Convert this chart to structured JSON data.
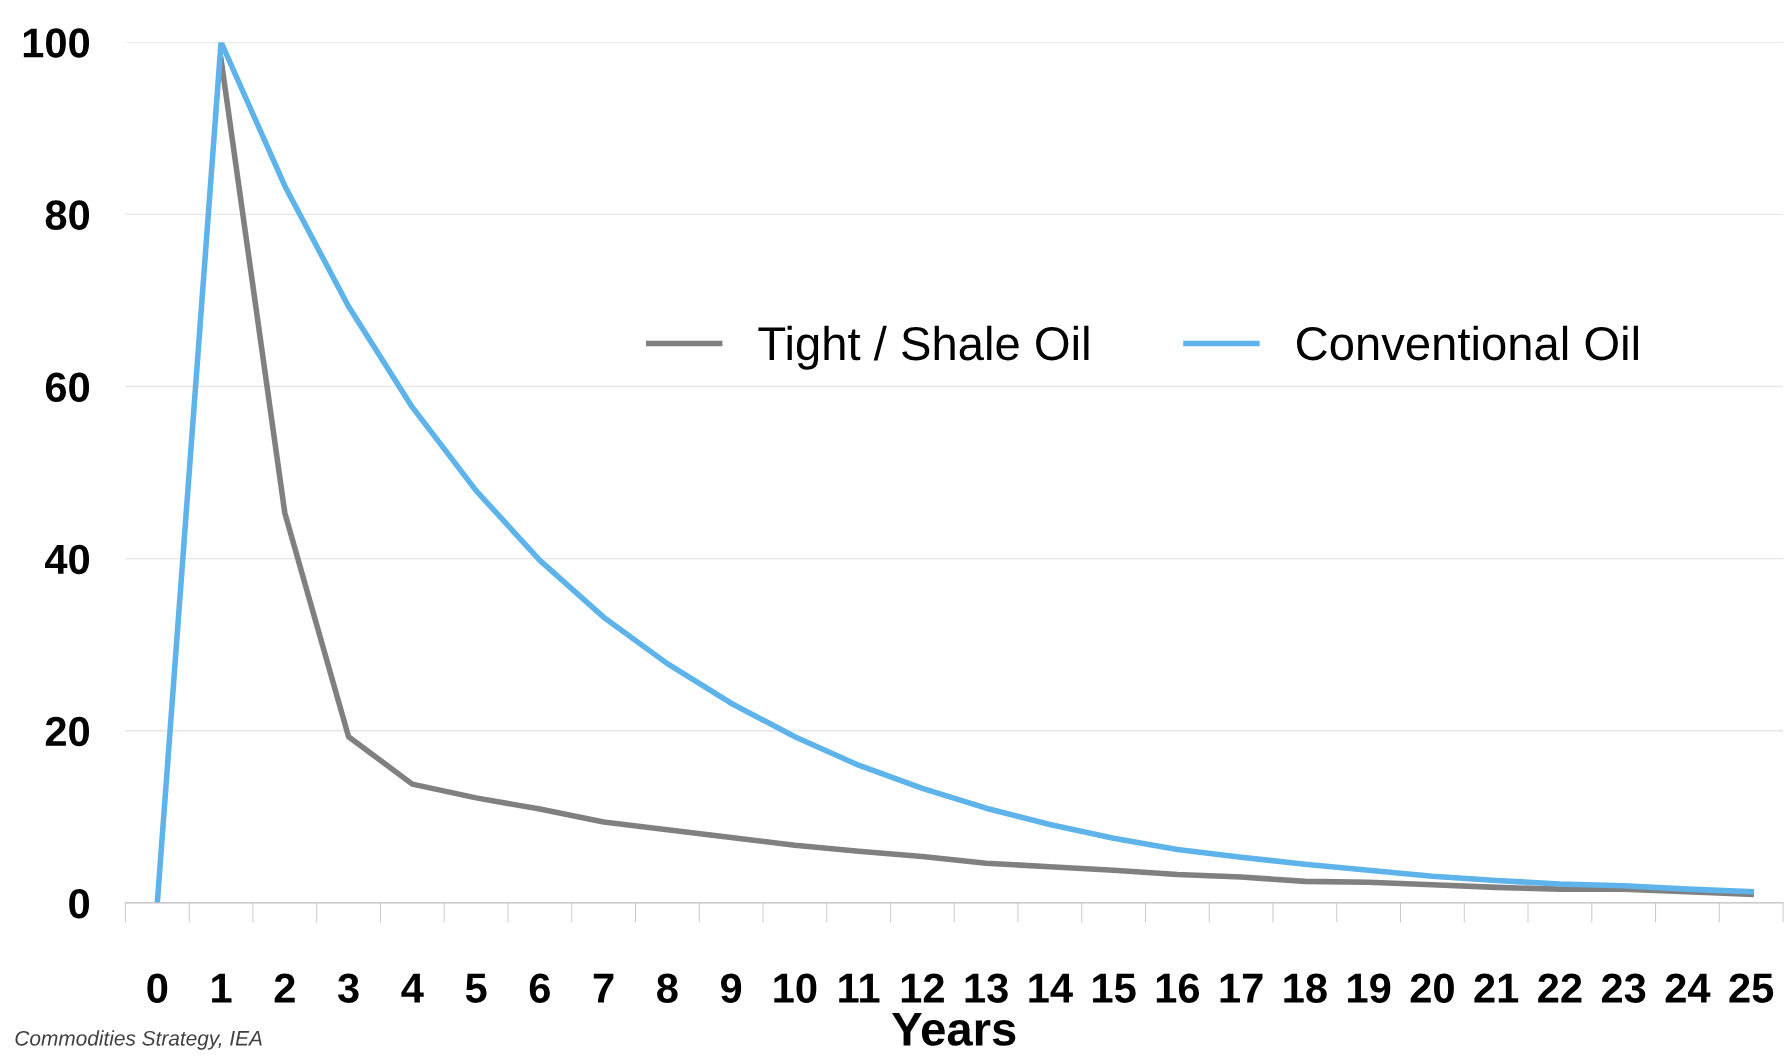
{
  "chart_data": {
    "type": "line",
    "xlabel": "Years",
    "categories": [
      "0",
      "1",
      "2",
      "3",
      "4",
      "5",
      "6",
      "7",
      "8",
      "9",
      "10",
      "11",
      "12",
      "13",
      "14",
      "15",
      "16",
      "17",
      "18",
      "19",
      "20",
      "21",
      "22",
      "23",
      "24",
      "25"
    ],
    "series": [
      {
        "name": "Tight / Shale Oil",
        "color": "#808080",
        "values": [
          null,
          98,
          45.3,
          19.3,
          13.8,
          12.2,
          10.9,
          9.4,
          8.5,
          7.6,
          6.7,
          6.0,
          5.4,
          4.6,
          4.2,
          3.8,
          3.3,
          3.0,
          2.5,
          2.4,
          2.1,
          1.8,
          1.6,
          1.6,
          1.3,
          1.0
        ]
      },
      {
        "name": "Conventional Oil",
        "color": "#5eb4ea",
        "values": [
          0,
          100,
          83.3,
          69.3,
          57.6,
          47.9,
          39.8,
          33.2,
          27.8,
          23.2,
          19.3,
          16.0,
          13.3,
          11.0,
          9.1,
          7.5,
          6.2,
          5.3,
          4.5,
          3.8,
          3.1,
          2.6,
          2.2,
          2.0,
          1.6,
          1.3
        ]
      }
    ],
    "ylim": [
      0,
      100
    ],
    "yticks": [
      0,
      20,
      40,
      60,
      80,
      100
    ],
    "grid": "y",
    "legend": "top right",
    "annotations": [
      "Commodities Strategy, IEA"
    ]
  }
}
